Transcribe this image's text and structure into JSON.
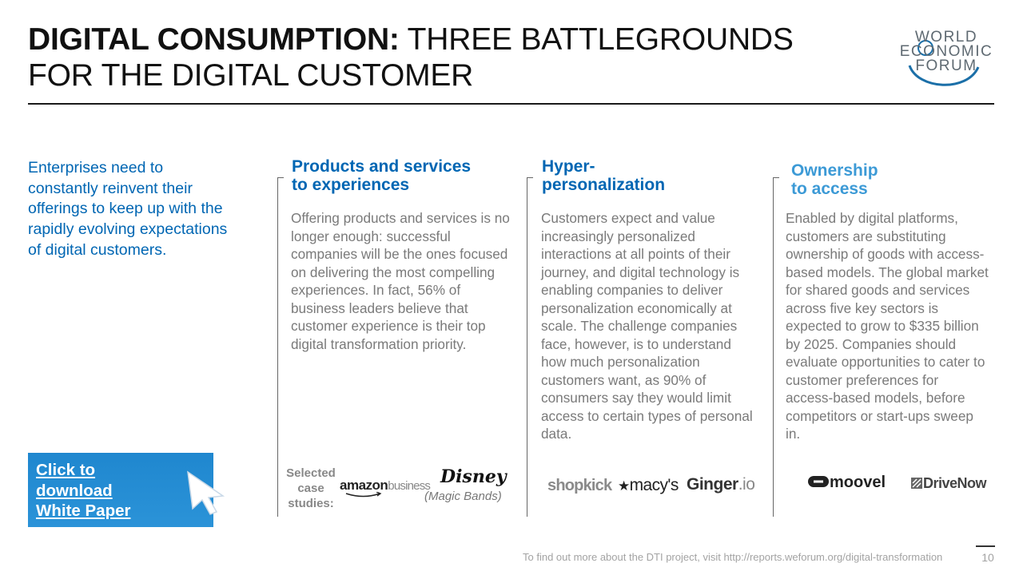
{
  "header": {
    "title_bold": "DIGITAL CONSUMPTION:",
    "title_line1_rest": "THREE BATTLEGROUNDS",
    "title_line2": "FOR THE DIGITAL CUSTOMER"
  },
  "logo": {
    "line1": "WORLD",
    "line2": "ECONOMIC",
    "line3": "FORUM"
  },
  "intro": "Enterprises need to constantly reinvent their offerings to keep up with the rapidly evolving expectations of digital customers.",
  "cta": {
    "line1": "Click to",
    "line2": "download",
    "line3": "White Paper"
  },
  "columns": [
    {
      "heading_line1": "Products and services",
      "heading_line2": "to experiences",
      "body": "Offering products and services is no longer enough: successful companies will be the ones focused on delivering the most compelling experiences. In fact, 56% of business leaders believe that customer experience is their top digital transformation priority."
    },
    {
      "heading_line1": "Hyper-",
      "heading_line2": "personalization",
      "body": "Customers expect and value increasingly personalized interactions at all points of their journey, and digital technology is enabling companies to deliver personalization economically at scale. The challenge companies face, however, is to understand how much personalization customers want, as 90% of consumers say they would limit access to certain types of personal data."
    },
    {
      "heading_line1": "Ownership",
      "heading_line2": "to access",
      "body": "Enabled by digital platforms, customers are substituting ownership of goods with access-based models. The global market for shared goods and services across five key sectors is expected to grow to $335 billion by 2025. Companies should evaluate opportunities to cater to customer preferences for access-based models, before competitors or start-ups sweep in."
    }
  ],
  "case_studies": {
    "label_line1": "Selected",
    "label_line2": "case",
    "label_line3": "studies:",
    "amazon": "amazon",
    "amazon_suffix": "business",
    "disney": "Disney",
    "disney_caption": "(Magic Bands)",
    "shopkick": "shopkick",
    "macys": "macy's",
    "macys_star": "★",
    "ginger": "Ginger",
    "ginger_suffix": ".io",
    "moovel": "moovel",
    "drivenow": "DriveNow"
  },
  "footer": {
    "note": "To find out more about the DTI project, visit http://reports.weforum.org/digital-transformation",
    "page": "10"
  },
  "colors": {
    "heading_blue_dark": "#0066b3",
    "heading_blue_light": "#3c9ad6",
    "cta_blue": "#1f87cf"
  }
}
